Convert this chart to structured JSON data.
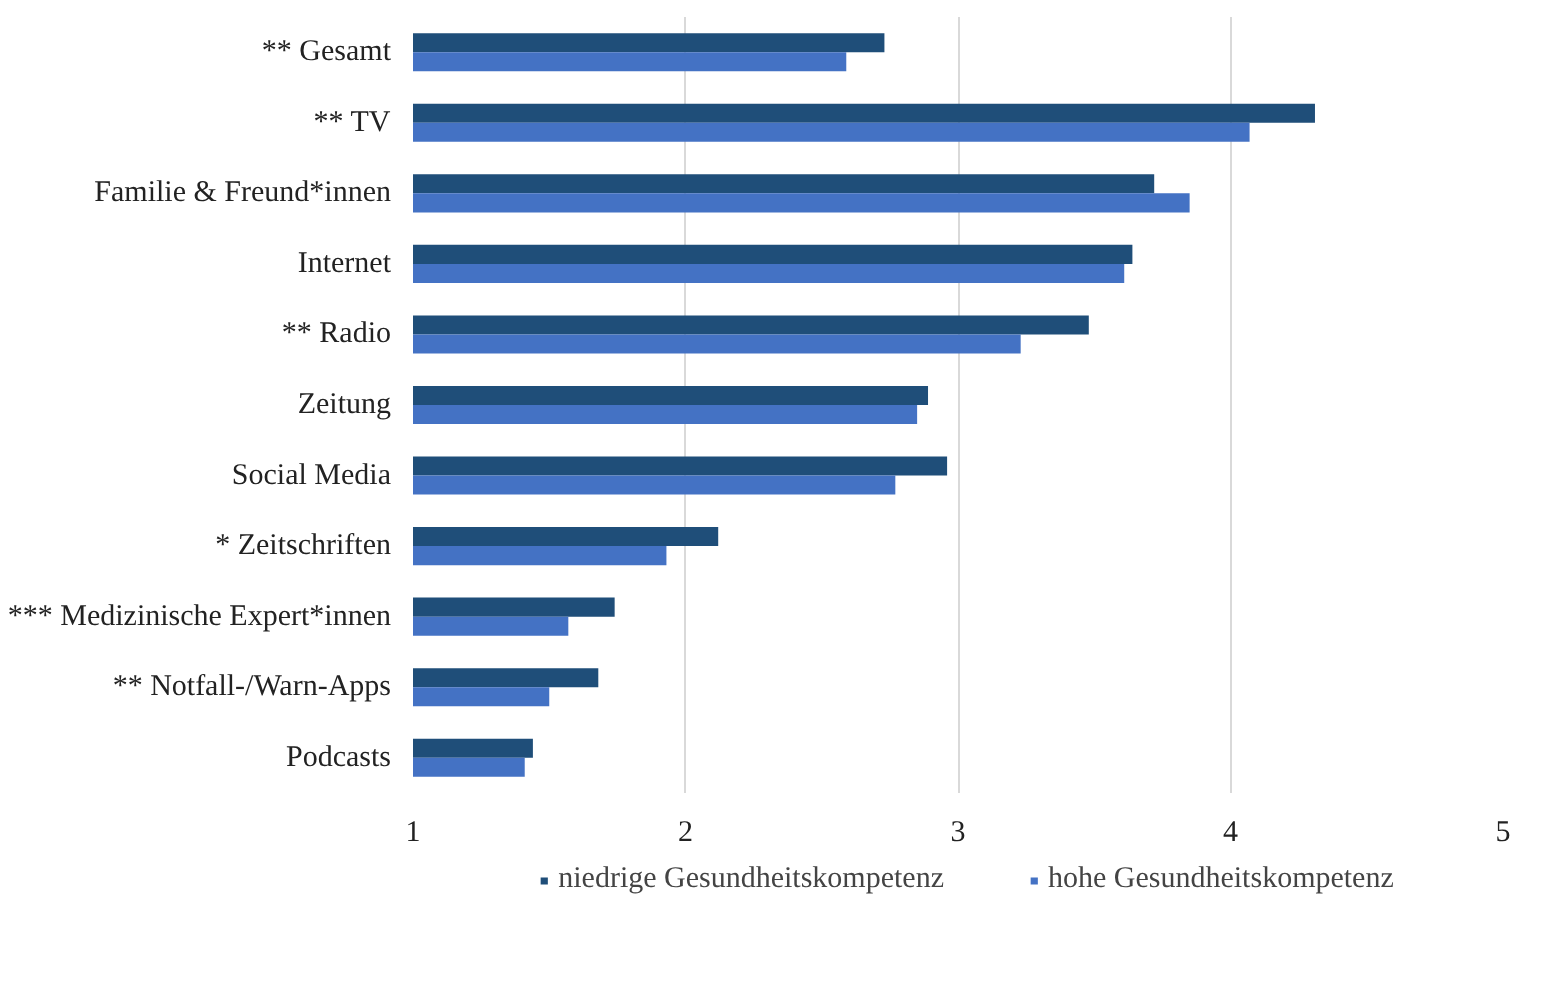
{
  "chart_data": {
    "type": "bar",
    "orientation": "horizontal",
    "categories": [
      "** Gesamt",
      "** TV",
      "Familie & Freund*innen",
      "Internet",
      "** Radio",
      "Zeitung",
      "Social Media",
      "* Zeitschriften",
      "*** Medizinische Expert*innen",
      "** Notfall-/Warn-Apps",
      "Podcasts"
    ],
    "series": [
      {
        "name": "niedrige Gesundheitskompetenz",
        "color": "#1f4e79",
        "values": [
          2.73,
          4.31,
          3.72,
          3.64,
          3.48,
          2.89,
          2.96,
          2.12,
          1.74,
          1.68,
          1.44
        ]
      },
      {
        "name": "hohe Gesundheitskompetenz",
        "color": "#4472c4",
        "values": [
          2.59,
          4.07,
          3.85,
          3.61,
          3.23,
          2.85,
          2.77,
          1.93,
          1.57,
          1.5,
          1.41
        ]
      }
    ],
    "xlim": [
      1,
      5
    ],
    "xticks": [
      1,
      2,
      3,
      4,
      5
    ],
    "grid": "x",
    "legend": "bottom"
  }
}
